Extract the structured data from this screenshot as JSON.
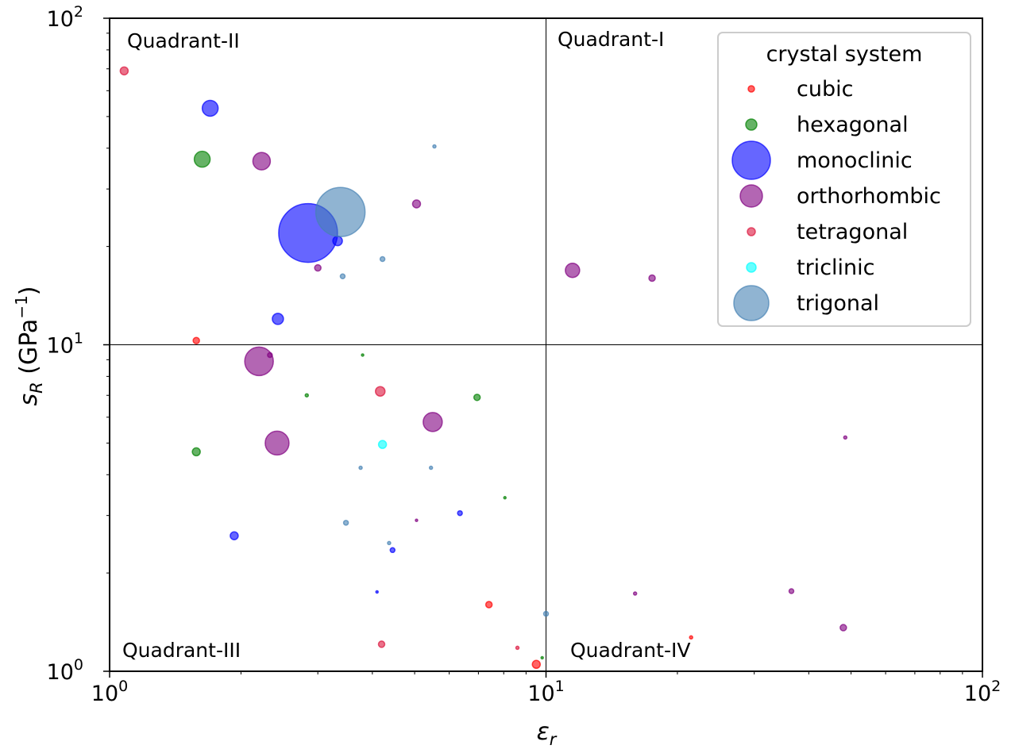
{
  "chart_data": {
    "type": "scatter",
    "xlabel_base": "ε",
    "xlabel_sub": "r",
    "ylabel_base": "s",
    "ylabel_sub": "R",
    "ylabel_unit_open": " (GPa",
    "ylabel_unit_sup": "−1",
    "ylabel_unit_close": ")",
    "xscale": "log",
    "yscale": "log",
    "xlim": [
      1,
      100
    ],
    "ylim": [
      1,
      100
    ],
    "x_ticks": [
      {
        "base": "10",
        "exp": "0",
        "value": 1
      },
      {
        "base": "10",
        "exp": "1",
        "value": 10
      },
      {
        "base": "10",
        "exp": "2",
        "value": 100
      }
    ],
    "y_ticks": [
      {
        "base": "10",
        "exp": "0",
        "value": 1
      },
      {
        "base": "10",
        "exp": "1",
        "value": 10
      },
      {
        "base": "10",
        "exp": "2",
        "value": 100
      }
    ],
    "reference_lines": {
      "x": 10,
      "y": 10
    },
    "quadrant_labels": {
      "q1": "Quadrant-I",
      "q2": "Quadrant-II",
      "q3": "Quadrant-III",
      "q4": "Quadrant-IV"
    },
    "legend": {
      "title": "crystal system",
      "placement": "top-right",
      "entries": [
        {
          "name": "cubic",
          "color": "#ff0000"
        },
        {
          "name": "hexagonal",
          "color": "#008000"
        },
        {
          "name": "monoclinic",
          "color": "#0000ff"
        },
        {
          "name": "orthorhombic",
          "color": "#800080"
        },
        {
          "name": "tetragonal",
          "color": "#dc143c"
        },
        {
          "name": "triclinic",
          "color": "#00ffff"
        },
        {
          "name": "trigonal",
          "color": "#4682b4"
        }
      ]
    },
    "series": [
      {
        "name": "cubic",
        "color": "#ff0000",
        "points": [
          {
            "x": 1.58,
            "y": 10.3,
            "r": 4
          },
          {
            "x": 7.4,
            "y": 1.6,
            "r": 4
          },
          {
            "x": 9.5,
            "y": 1.05,
            "r": 5
          },
          {
            "x": 21.5,
            "y": 1.27,
            "r": 2
          }
        ]
      },
      {
        "name": "hexagonal",
        "color": "#008000",
        "points": [
          {
            "x": 1.63,
            "y": 37.0,
            "r": 10
          },
          {
            "x": 1.58,
            "y": 4.7,
            "r": 5
          },
          {
            "x": 2.83,
            "y": 7.0,
            "r": 2
          },
          {
            "x": 3.8,
            "y": 9.3,
            "r": 1.5
          },
          {
            "x": 6.95,
            "y": 6.9,
            "r": 4
          },
          {
            "x": 8.05,
            "y": 3.4,
            "r": 1.5
          },
          {
            "x": 9.8,
            "y": 1.1,
            "r": 1.5
          }
        ]
      },
      {
        "name": "monoclinic",
        "color": "#0000ff",
        "points": [
          {
            "x": 1.7,
            "y": 53.0,
            "r": 10
          },
          {
            "x": 2.85,
            "y": 22.0,
            "r": 37
          },
          {
            "x": 3.33,
            "y": 20.8,
            "r": 6
          },
          {
            "x": 2.43,
            "y": 12.0,
            "r": 7
          },
          {
            "x": 1.93,
            "y": 2.6,
            "r": 5
          },
          {
            "x": 6.35,
            "y": 3.05,
            "r": 3
          },
          {
            "x": 4.45,
            "y": 2.35,
            "r": 3
          },
          {
            "x": 4.1,
            "y": 1.75,
            "r": 1.5
          }
        ]
      },
      {
        "name": "orthorhombic",
        "color": "#800080",
        "points": [
          {
            "x": 2.23,
            "y": 36.5,
            "r": 11
          },
          {
            "x": 5.05,
            "y": 27.0,
            "r": 5
          },
          {
            "x": 3.0,
            "y": 17.2,
            "r": 4
          },
          {
            "x": 11.5,
            "y": 16.9,
            "r": 9
          },
          {
            "x": 17.5,
            "y": 16.0,
            "r": 4
          },
          {
            "x": 2.2,
            "y": 8.9,
            "r": 18
          },
          {
            "x": 2.33,
            "y": 9.3,
            "r": 3
          },
          {
            "x": 5.5,
            "y": 5.8,
            "r": 12
          },
          {
            "x": 2.42,
            "y": 5.0,
            "r": 15
          },
          {
            "x": 5.05,
            "y": 2.9,
            "r": 1.5
          },
          {
            "x": 48.5,
            "y": 5.2,
            "r": 2
          },
          {
            "x": 16.0,
            "y": 1.73,
            "r": 2
          },
          {
            "x": 36.5,
            "y": 1.76,
            "r": 3
          },
          {
            "x": 48.0,
            "y": 1.36,
            "r": 4
          }
        ]
      },
      {
        "name": "tetragonal",
        "color": "#dc143c",
        "points": [
          {
            "x": 1.08,
            "y": 69.0,
            "r": 5
          },
          {
            "x": 4.17,
            "y": 7.2,
            "r": 6
          },
          {
            "x": 4.2,
            "y": 1.21,
            "r": 4
          },
          {
            "x": 8.6,
            "y": 1.18,
            "r": 2
          }
        ]
      },
      {
        "name": "triclinic",
        "color": "#00ffff",
        "points": [
          {
            "x": 4.22,
            "y": 4.95,
            "r": 5
          }
        ]
      },
      {
        "name": "trigonal",
        "color": "#4682b4",
        "points": [
          {
            "x": 3.38,
            "y": 25.5,
            "r": 31
          },
          {
            "x": 5.55,
            "y": 40.5,
            "r": 2
          },
          {
            "x": 4.22,
            "y": 18.3,
            "r": 3
          },
          {
            "x": 3.42,
            "y": 16.2,
            "r": 3
          },
          {
            "x": 3.76,
            "y": 4.2,
            "r": 2
          },
          {
            "x": 5.45,
            "y": 4.2,
            "r": 2
          },
          {
            "x": 3.48,
            "y": 2.85,
            "r": 3
          },
          {
            "x": 4.37,
            "y": 2.47,
            "r": 2
          },
          {
            "x": 10.0,
            "y": 1.5,
            "r": 3
          }
        ]
      }
    ]
  }
}
